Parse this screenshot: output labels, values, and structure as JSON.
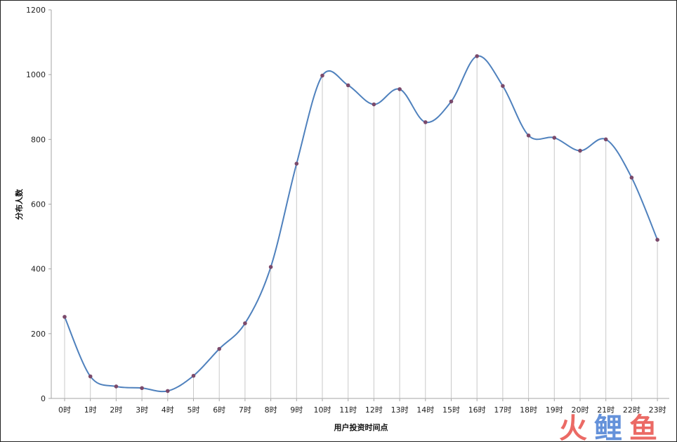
{
  "chart_data": {
    "type": "line",
    "title": "",
    "xlabel": "用户投资时间点",
    "ylabel": "分布人数",
    "categories": [
      "0时",
      "1时",
      "2时",
      "3时",
      "4时",
      "5时",
      "6时",
      "7时",
      "8时",
      "9时",
      "10时",
      "11时",
      "12时",
      "13时",
      "14时",
      "15时",
      "16时",
      "17时",
      "18时",
      "19时",
      "20时",
      "21时",
      "22时",
      "23时"
    ],
    "series": [
      {
        "values": [
          252,
          68,
          37,
          32,
          23,
          70,
          153,
          232,
          406,
          725,
          997,
          967,
          908,
          955,
          853,
          917,
          1057,
          965,
          812,
          805,
          765,
          800,
          682,
          490
        ]
      }
    ],
    "ylim": [
      0,
      1200
    ],
    "yticks": [
      0,
      200,
      400,
      600,
      800,
      1000,
      1200
    ],
    "smooth": true,
    "drop_lines": true,
    "grid": false,
    "legend": "none",
    "colors": {
      "line": "#4f81bd",
      "marker": "#7b4a6b",
      "drop_line": "#c9c9c9",
      "axis": "#a6a6a6"
    }
  },
  "watermark": {
    "text": "火鲤鱼",
    "colors": [
      "#e8504a",
      "#4a7fd4",
      "#e8504a"
    ]
  }
}
